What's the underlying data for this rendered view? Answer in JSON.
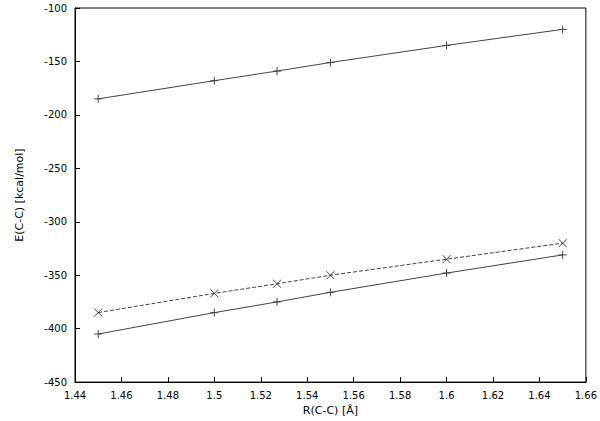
{
  "chart_data": {
    "type": "line",
    "x_label": "R(C-C) [Å]",
    "y_label": "E(C-C) [kcal/mol]",
    "x": [
      1.45,
      1.5,
      1.527,
      1.55,
      1.6,
      1.65
    ],
    "series": [
      {
        "color": "#444444",
        "marker": "plus",
        "line_style": "solid",
        "values": [
          -185,
          -168,
          -159,
          -151,
          -135,
          -120
        ]
      },
      {
        "color": "#444444",
        "marker": "x",
        "line_style": "dashed",
        "values": [
          -385,
          -367,
          -358,
          -350,
          -335,
          -320
        ]
      },
      {
        "color": "#444444",
        "marker": "plus",
        "line_style": "solid",
        "values": [
          -405,
          -385,
          -375,
          -366,
          -348,
          -331
        ]
      }
    ],
    "xlim": [
      1.44,
      1.66
    ],
    "xticks": [
      1.44,
      1.46,
      1.48,
      1.5,
      1.52,
      1.54,
      1.56,
      1.58,
      1.6,
      1.62,
      1.64,
      1.66
    ],
    "ylim": [
      -450,
      -100
    ],
    "yticks": [
      -450,
      -400,
      -350,
      -300,
      -250,
      -200,
      -150,
      -100
    ],
    "grid": false
  }
}
